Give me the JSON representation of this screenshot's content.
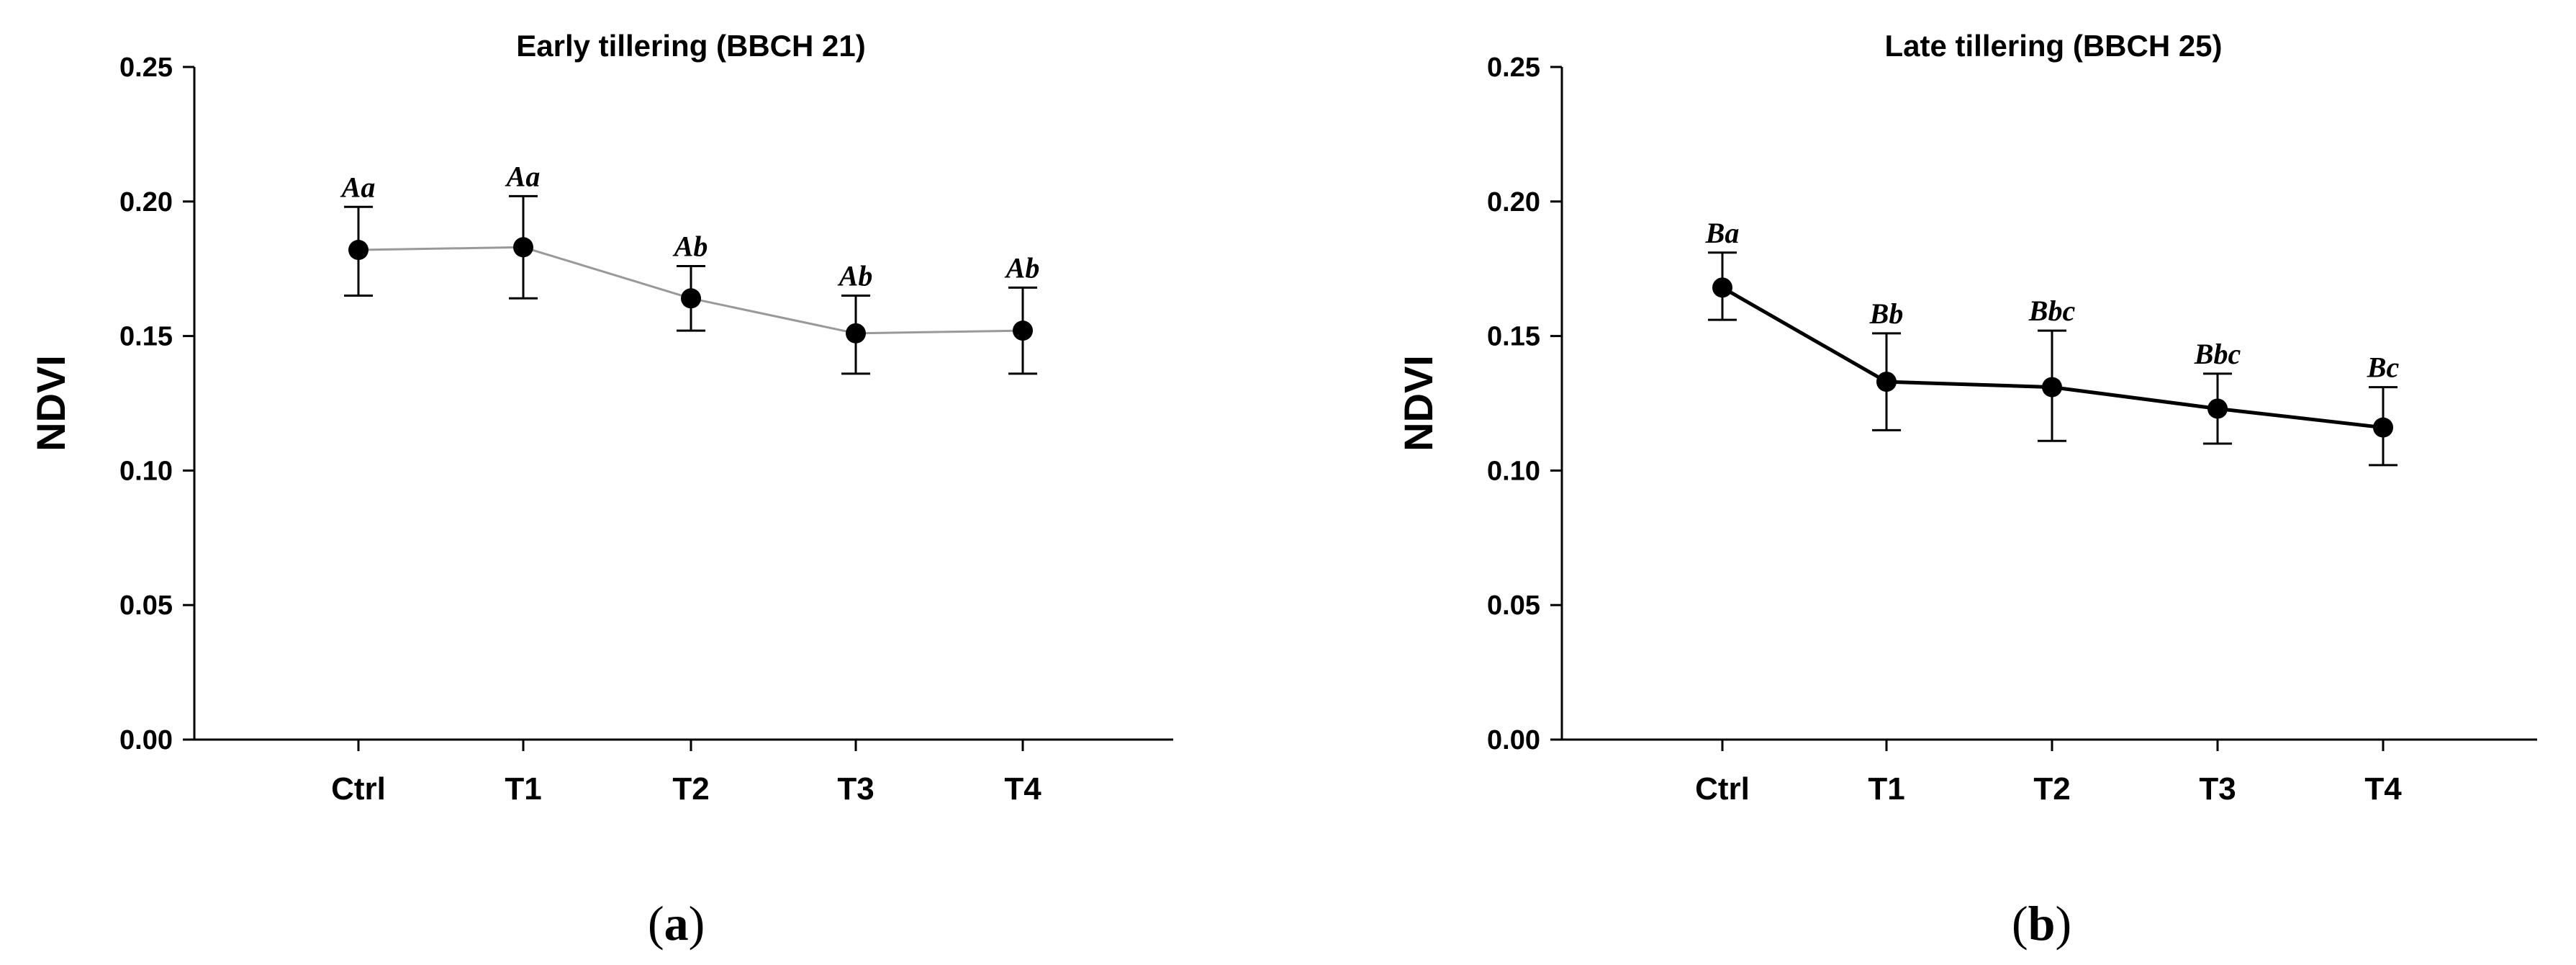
{
  "chart_data": [
    {
      "type": "line",
      "title": "Early tillering (BBCH 21)",
      "ylabel": "NDVI",
      "xlabel": "",
      "categories": [
        "Ctrl",
        "T1",
        "T2",
        "T3",
        "T4"
      ],
      "values": [
        0.182,
        0.183,
        0.164,
        0.151,
        0.152
      ],
      "error_upper": [
        0.198,
        0.202,
        0.176,
        0.165,
        0.168
      ],
      "error_lower": [
        0.165,
        0.164,
        0.152,
        0.136,
        0.136
      ],
      "labels": [
        "Aa",
        "Aa",
        "Ab",
        "Ab",
        "Ab"
      ],
      "ylim": [
        0.0,
        0.25
      ],
      "yticks": [
        "0.00",
        "0.05",
        "0.10",
        "0.15",
        "0.20",
        "0.25"
      ],
      "line_color": "#999999",
      "marker_color": "#000000",
      "grid": false,
      "panel_label": "a"
    },
    {
      "type": "line",
      "title": "Late tillering (BBCH 25)",
      "ylabel": "NDVI",
      "xlabel": "",
      "categories": [
        "Ctrl",
        "T1",
        "T2",
        "T3",
        "T4"
      ],
      "values": [
        0.168,
        0.133,
        0.131,
        0.123,
        0.116
      ],
      "error_upper": [
        0.181,
        0.151,
        0.152,
        0.136,
        0.131
      ],
      "error_lower": [
        0.156,
        0.115,
        0.111,
        0.11,
        0.102
      ],
      "labels": [
        "Ba",
        "Bb",
        "Bbc",
        "Bbc",
        "Bc"
      ],
      "ylim": [
        0.0,
        0.25
      ],
      "yticks": [
        "0.00",
        "0.05",
        "0.10",
        "0.15",
        "0.20",
        "0.25"
      ],
      "line_color": "#000000",
      "marker_color": "#000000",
      "grid": false,
      "panel_label": "b"
    }
  ]
}
